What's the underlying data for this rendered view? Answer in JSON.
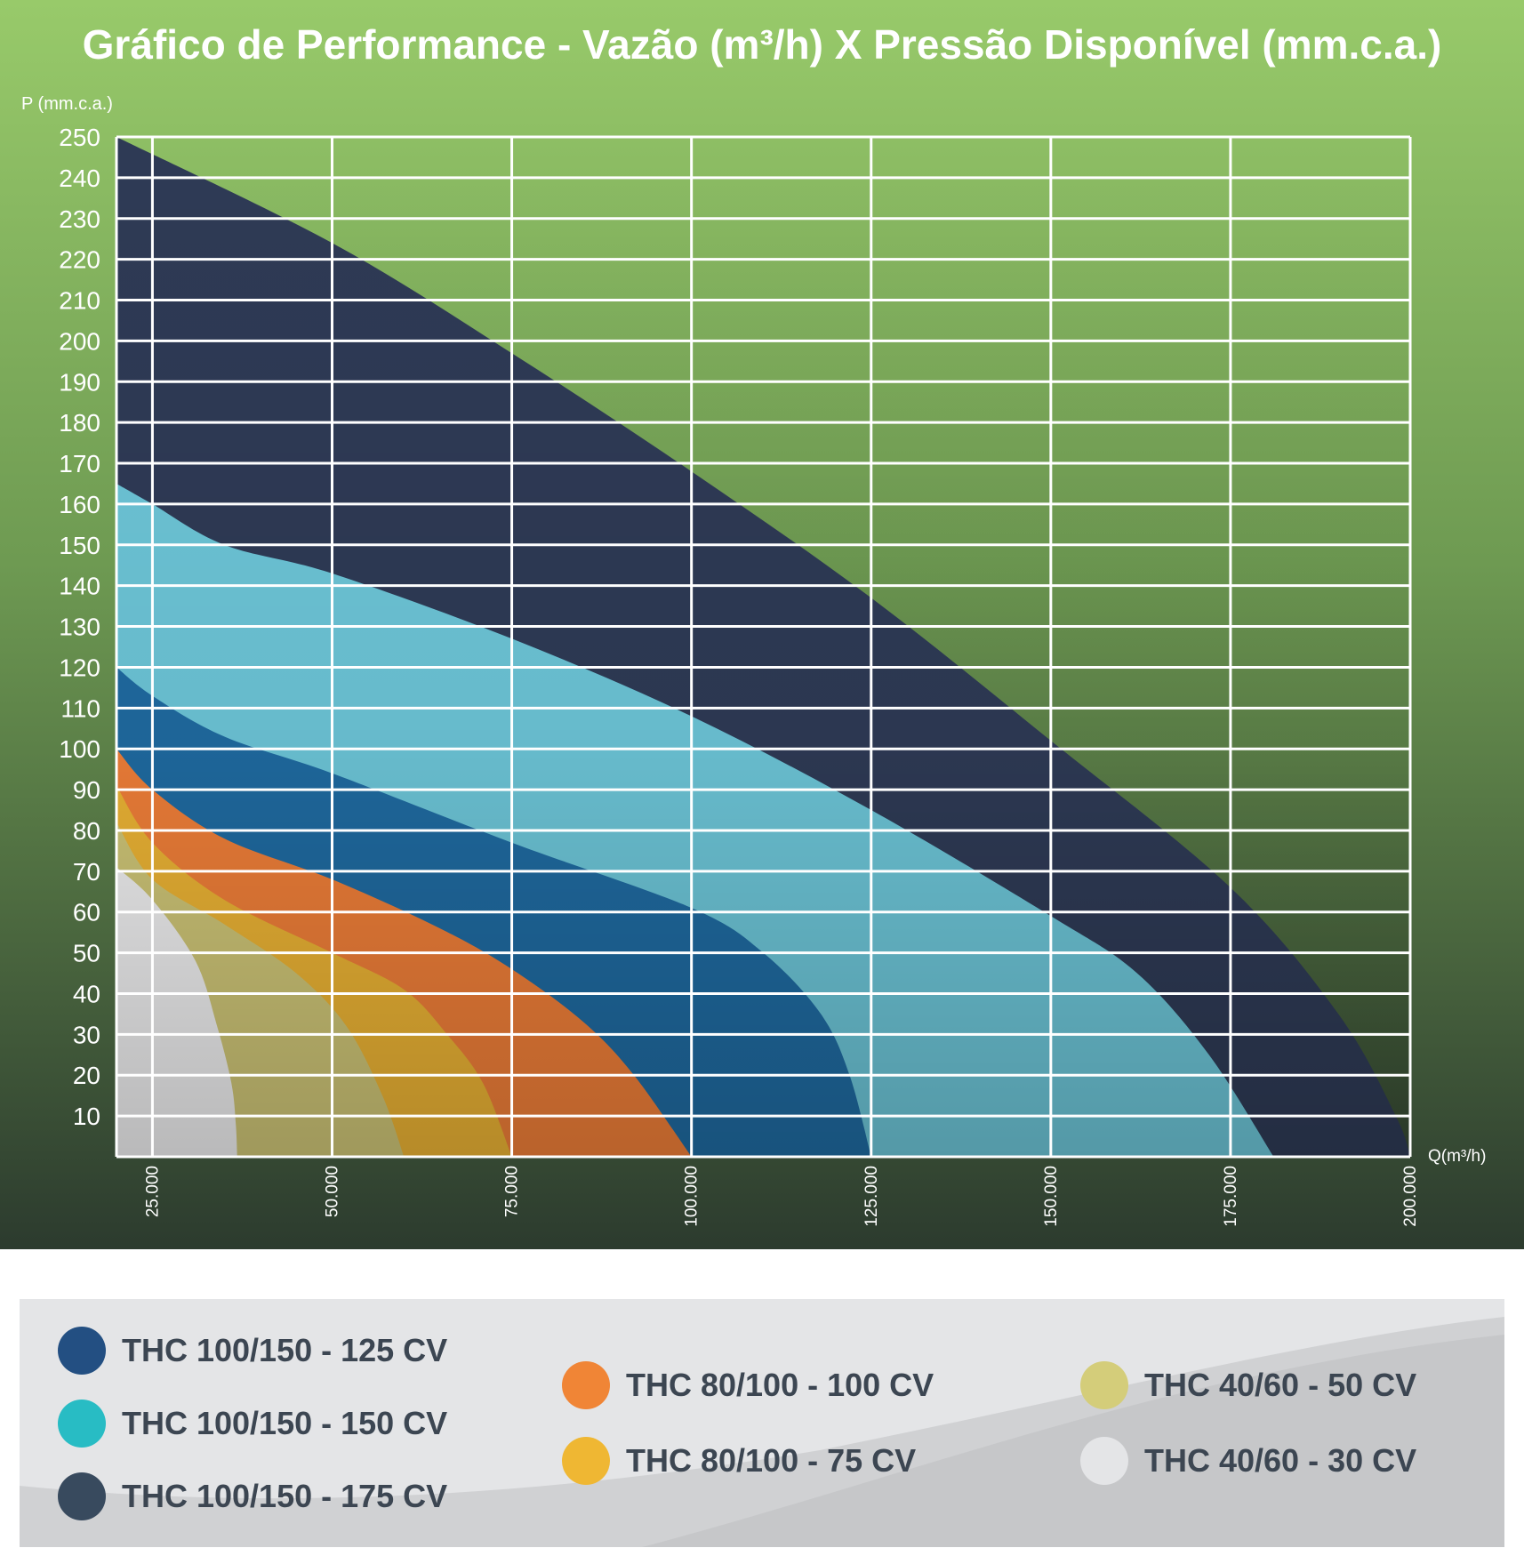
{
  "chart_data": {
    "type": "area",
    "title": "Gráfico de Performance  - Vazão (m³/h) X Pressão Disponível (mm.c.a.)",
    "ylabel": "P (mm.c.a.)",
    "xlabel": "Q(m³/h)",
    "xlim": [
      20000,
      200000
    ],
    "ylim": [
      0,
      250
    ],
    "x_ticks": [
      25000,
      50000,
      75000,
      100000,
      125000,
      150000,
      175000,
      200000
    ],
    "x_tick_labels": [
      "25.000",
      "50.000",
      "75.000",
      "100.000",
      "125.000",
      "150.000",
      "175.000",
      "200.000"
    ],
    "y_ticks": [
      10,
      20,
      30,
      40,
      50,
      60,
      70,
      80,
      90,
      100,
      110,
      120,
      130,
      140,
      150,
      160,
      170,
      180,
      190,
      200,
      210,
      220,
      230,
      240,
      250
    ],
    "y_tick_labels": [
      "10",
      "20",
      "30",
      "40",
      "50",
      "60",
      "70",
      "80",
      "90",
      "100",
      "110",
      "120",
      "130",
      "140",
      "150",
      "160",
      "170",
      "180",
      "190",
      "200",
      "210",
      "220",
      "230",
      "240",
      "250"
    ],
    "grid": true,
    "legend_position": "bottom",
    "series": [
      {
        "name": "THC 100/150 - 175 CV",
        "color": "#2e3a55",
        "points": [
          [
            20000,
            250
          ],
          [
            50000,
            224
          ],
          [
            75000,
            197
          ],
          [
            100000,
            168
          ],
          [
            125000,
            137
          ],
          [
            150000,
            102
          ],
          [
            175000,
            66
          ],
          [
            190000,
            35
          ],
          [
            198000,
            10
          ],
          [
            200000,
            0
          ]
        ]
      },
      {
        "name": "THC 100/150 - 150 CV",
        "color": "#6cc4d6",
        "points": [
          [
            20000,
            165
          ],
          [
            25000,
            160
          ],
          [
            35000,
            150
          ],
          [
            50000,
            143
          ],
          [
            75000,
            127
          ],
          [
            100000,
            108
          ],
          [
            125000,
            85
          ],
          [
            150000,
            59
          ],
          [
            162000,
            45
          ],
          [
            172000,
            25
          ],
          [
            181000,
            0
          ]
        ]
      },
      {
        "name": "THC 100/150 - 125 CV",
        "color": "#1f6aa0",
        "points": [
          [
            20000,
            120
          ],
          [
            25000,
            113
          ],
          [
            35000,
            103
          ],
          [
            50000,
            94
          ],
          [
            75000,
            77
          ],
          [
            100000,
            61
          ],
          [
            110000,
            50
          ],
          [
            118000,
            35
          ],
          [
            122000,
            20
          ],
          [
            125000,
            0
          ]
        ]
      },
      {
        "name": "THC 80/100 - 100 CV",
        "color": "#ee7e38",
        "points": [
          [
            20000,
            100
          ],
          [
            25000,
            90
          ],
          [
            35000,
            78
          ],
          [
            50000,
            68
          ],
          [
            65000,
            56
          ],
          [
            75000,
            46
          ],
          [
            85000,
            33
          ],
          [
            92000,
            20
          ],
          [
            100000,
            0
          ]
        ]
      },
      {
        "name": "THC 80/100 - 75 CV",
        "color": "#eab234",
        "points": [
          [
            20000,
            91
          ],
          [
            25000,
            77
          ],
          [
            35000,
            63
          ],
          [
            50000,
            50
          ],
          [
            60000,
            41
          ],
          [
            66000,
            30
          ],
          [
            71000,
            18
          ],
          [
            75000,
            0
          ]
        ]
      },
      {
        "name": "THC 40/60 - 50 CV",
        "color": "#cdc476",
        "points": [
          [
            20000,
            82
          ],
          [
            25000,
            68
          ],
          [
            35000,
            57
          ],
          [
            45000,
            45
          ],
          [
            52000,
            32
          ],
          [
            57000,
            15
          ],
          [
            60000,
            0
          ]
        ]
      },
      {
        "name": "THC 40/60 - 30 CV",
        "color": "#eeeeef",
        "points": [
          [
            20000,
            71
          ],
          [
            25000,
            63
          ],
          [
            31000,
            48
          ],
          [
            34000,
            32
          ],
          [
            36000,
            18
          ],
          [
            36600,
            8
          ],
          [
            36800,
            0
          ]
        ]
      }
    ]
  },
  "legend": {
    "items": [
      {
        "label": "THC 100/150 - 125 CV",
        "color": "#234f82"
      },
      {
        "label": "THC 100/150 - 150 CV",
        "color": "#28bcc4"
      },
      {
        "label": "THC 100/150 - 175 CV",
        "color": "#384a5e"
      },
      {
        "label": "THC 80/100 - 100 CV",
        "color": "#f08536"
      },
      {
        "label": "THC 80/100 - 75 CV",
        "color": "#efb733"
      },
      {
        "label": "THC 40/60 - 50 CV",
        "color": "#d4cd7a"
      },
      {
        "label": "THC 40/60 - 30 CV",
        "color": "#e4e5e7"
      }
    ]
  }
}
